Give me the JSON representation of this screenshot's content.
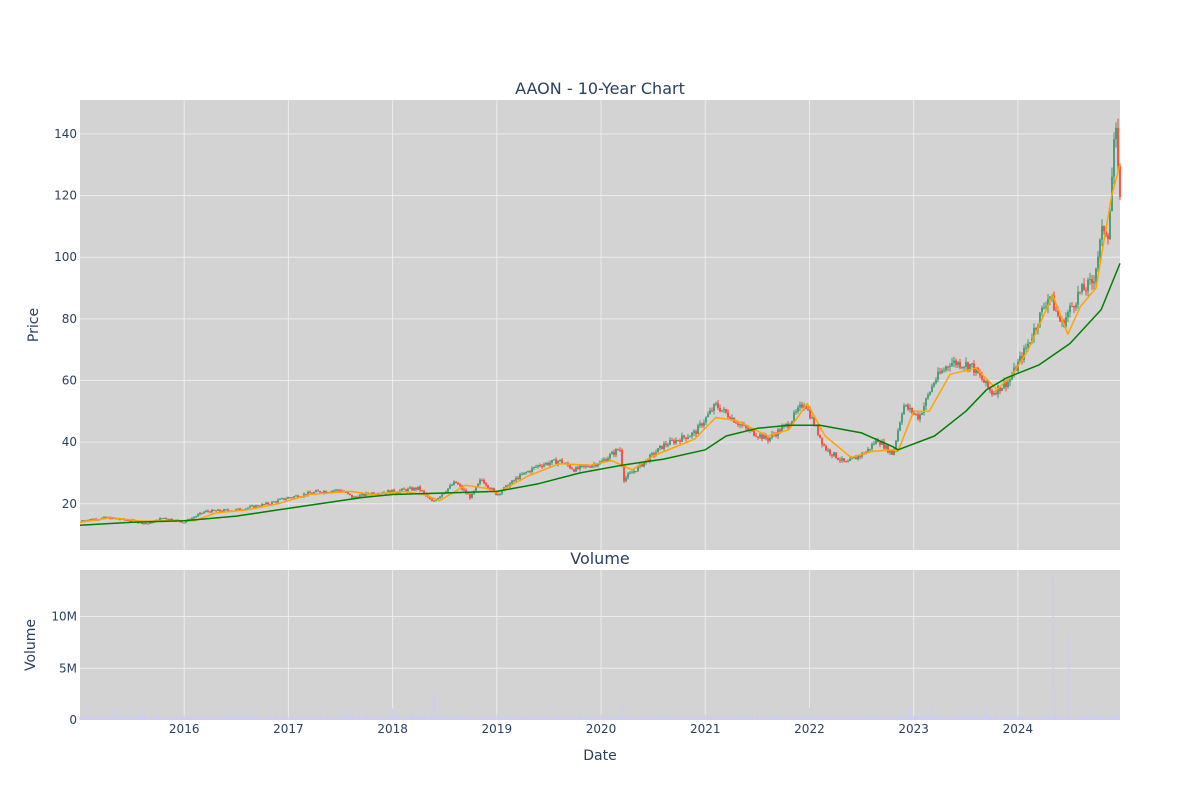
{
  "chart_data": [
    {
      "type": "candlestick",
      "title": "AAON - 10-Year Chart",
      "ylabel": "Price",
      "xlabel": "",
      "xlim": [
        2015.0,
        2024.98
      ],
      "ylim": [
        5,
        151
      ],
      "x_ticks": [
        "2016",
        "2017",
        "2018",
        "2019",
        "2020",
        "2021",
        "2022",
        "2023",
        "2024"
      ],
      "y_ticks": [
        20,
        40,
        60,
        80,
        100,
        120,
        140
      ],
      "grid": true,
      "colors": {
        "increasing": "#3d9970",
        "decreasing": "#ff4136",
        "ma_short": "#ffa500",
        "ma_long": "#008000",
        "plot_bg": "#d3d3d3",
        "grid": "#ececec"
      },
      "price_path": [
        [
          2015.0,
          14.5
        ],
        [
          2015.25,
          15.5
        ],
        [
          2015.5,
          14.5
        ],
        [
          2015.65,
          13.5
        ],
        [
          2015.8,
          15.5
        ],
        [
          2016.0,
          14.0
        ],
        [
          2016.2,
          17.5
        ],
        [
          2016.5,
          18.0
        ],
        [
          2016.8,
          20.0
        ],
        [
          2017.0,
          22.0
        ],
        [
          2017.3,
          24.0
        ],
        [
          2017.5,
          24.5
        ],
        [
          2017.62,
          22.0
        ],
        [
          2017.8,
          23.5
        ],
        [
          2018.0,
          24.0
        ],
        [
          2018.25,
          25.0
        ],
        [
          2018.38,
          20.5
        ],
        [
          2018.6,
          27.0
        ],
        [
          2018.75,
          22.0
        ],
        [
          2018.85,
          28.0
        ],
        [
          2019.0,
          23.0
        ],
        [
          2019.2,
          28.5
        ],
        [
          2019.4,
          32.5
        ],
        [
          2019.6,
          34.0
        ],
        [
          2019.75,
          31.0
        ],
        [
          2020.0,
          33.5
        ],
        [
          2020.18,
          38.0
        ],
        [
          2020.22,
          28.0
        ],
        [
          2020.4,
          33.0
        ],
        [
          2020.6,
          39.0
        ],
        [
          2020.9,
          43.0
        ],
        [
          2021.1,
          52.0
        ],
        [
          2021.4,
          44.0
        ],
        [
          2021.6,
          41.0
        ],
        [
          2021.8,
          46.0
        ],
        [
          2021.95,
          53.0
        ],
        [
          2022.15,
          38.0
        ],
        [
          2022.35,
          33.0
        ],
        [
          2022.55,
          37.0
        ],
        [
          2022.65,
          41.0
        ],
        [
          2022.8,
          36.0
        ],
        [
          2022.9,
          52.0
        ],
        [
          2023.05,
          48.0
        ],
        [
          2023.2,
          60.0
        ],
        [
          2023.35,
          66.0
        ],
        [
          2023.55,
          65.0
        ],
        [
          2023.75,
          56.0
        ],
        [
          2023.92,
          60.0
        ],
        [
          2024.1,
          72.0
        ],
        [
          2024.3,
          88.0
        ],
        [
          2024.42,
          78.0
        ],
        [
          2024.58,
          88.0
        ],
        [
          2024.72,
          92.0
        ],
        [
          2024.82,
          110.0
        ],
        [
          2024.87,
          108.0
        ],
        [
          2024.92,
          135.0
        ],
        [
          2024.95,
          140.0
        ],
        [
          2024.98,
          118.0
        ]
      ],
      "ma_short": [
        [
          2015.0,
          14.0
        ],
        [
          2015.3,
          15.5
        ],
        [
          2015.6,
          14.3
        ],
        [
          2015.8,
          14.5
        ],
        [
          2016.1,
          14.5
        ],
        [
          2016.3,
          17.0
        ],
        [
          2016.6,
          18.0
        ],
        [
          2016.9,
          20.0
        ],
        [
          2017.2,
          23.0
        ],
        [
          2017.6,
          24.0
        ],
        [
          2017.8,
          23.0
        ],
        [
          2018.1,
          24.0
        ],
        [
          2018.3,
          23.0
        ],
        [
          2018.45,
          21.0
        ],
        [
          2018.7,
          26.0
        ],
        [
          2018.9,
          25.0
        ],
        [
          2019.0,
          23.5
        ],
        [
          2019.3,
          29.0
        ],
        [
          2019.6,
          33.0
        ],
        [
          2019.9,
          32.5
        ],
        [
          2020.1,
          34.0
        ],
        [
          2020.3,
          31.0
        ],
        [
          2020.5,
          35.5
        ],
        [
          2020.9,
          41.0
        ],
        [
          2021.1,
          48.0
        ],
        [
          2021.3,
          47.0
        ],
        [
          2021.6,
          42.0
        ],
        [
          2021.8,
          44.0
        ],
        [
          2021.98,
          52.5
        ],
        [
          2022.15,
          42.0
        ],
        [
          2022.4,
          35.0
        ],
        [
          2022.6,
          37.0
        ],
        [
          2022.8,
          37.5
        ],
        [
          2022.85,
          37.0
        ],
        [
          2023.0,
          50.0
        ],
        [
          2023.15,
          50.0
        ],
        [
          2023.35,
          62.0
        ],
        [
          2023.6,
          64.0
        ],
        [
          2023.8,
          57.0
        ],
        [
          2023.95,
          62.0
        ],
        [
          2024.1,
          70.0
        ],
        [
          2024.3,
          85.0
        ],
        [
          2024.33,
          88.0
        ],
        [
          2024.48,
          75.0
        ],
        [
          2024.6,
          84.0
        ],
        [
          2024.75,
          90.0
        ],
        [
          2024.9,
          120.0
        ],
        [
          2024.98,
          130.0
        ]
      ],
      "ma_long": [
        [
          2015.0,
          13.0
        ],
        [
          2015.5,
          14.0
        ],
        [
          2016.0,
          14.5
        ],
        [
          2016.5,
          16.0
        ],
        [
          2016.9,
          18.0
        ],
        [
          2017.3,
          20.0
        ],
        [
          2017.7,
          22.0
        ],
        [
          2018.0,
          23.0
        ],
        [
          2018.5,
          23.5
        ],
        [
          2019.0,
          24.0
        ],
        [
          2019.4,
          26.5
        ],
        [
          2019.8,
          30.0
        ],
        [
          2020.2,
          32.5
        ],
        [
          2020.6,
          34.5
        ],
        [
          2021.0,
          37.5
        ],
        [
          2021.2,
          42.0
        ],
        [
          2021.5,
          44.5
        ],
        [
          2021.8,
          45.5
        ],
        [
          2022.1,
          45.5
        ],
        [
          2022.5,
          43.0
        ],
        [
          2022.8,
          38.5
        ],
        [
          2022.85,
          37.5
        ],
        [
          2023.2,
          42.0
        ],
        [
          2023.5,
          50.0
        ],
        [
          2023.7,
          57.0
        ],
        [
          2023.9,
          61.0
        ],
        [
          2024.2,
          65.0
        ],
        [
          2024.5,
          72.0
        ],
        [
          2024.8,
          83.0
        ],
        [
          2024.98,
          98.0
        ]
      ]
    },
    {
      "type": "bar",
      "title": "Volume",
      "ylabel": "Volume",
      "xlabel": "Date",
      "xlim": [
        2015.0,
        2024.98
      ],
      "ylim": [
        0,
        14500000
      ],
      "y_ticks": [
        0,
        5000000,
        10000000
      ],
      "y_tick_labels": [
        "0",
        "5M",
        "10M"
      ],
      "grid": true,
      "colors": {
        "bar": "#ccccf5"
      },
      "volume_spikes": [
        [
          2015.33,
          1000000
        ],
        [
          2015.6,
          700000
        ],
        [
          2017.58,
          1000000
        ],
        [
          2018.0,
          1100000
        ],
        [
          2018.2,
          1200000
        ],
        [
          2018.4,
          2600000
        ],
        [
          2018.85,
          800000
        ],
        [
          2020.2,
          1800000
        ],
        [
          2021.5,
          700000
        ],
        [
          2022.0,
          1200000
        ],
        [
          2022.97,
          1200000
        ],
        [
          2023.17,
          2000000
        ],
        [
          2023.7,
          1200000
        ],
        [
          2024.34,
          13800000
        ],
        [
          2024.36,
          3300000
        ],
        [
          2024.49,
          8300000
        ],
        [
          2024.7,
          1200000
        ],
        [
          2024.97,
          1000000
        ]
      ]
    }
  ]
}
